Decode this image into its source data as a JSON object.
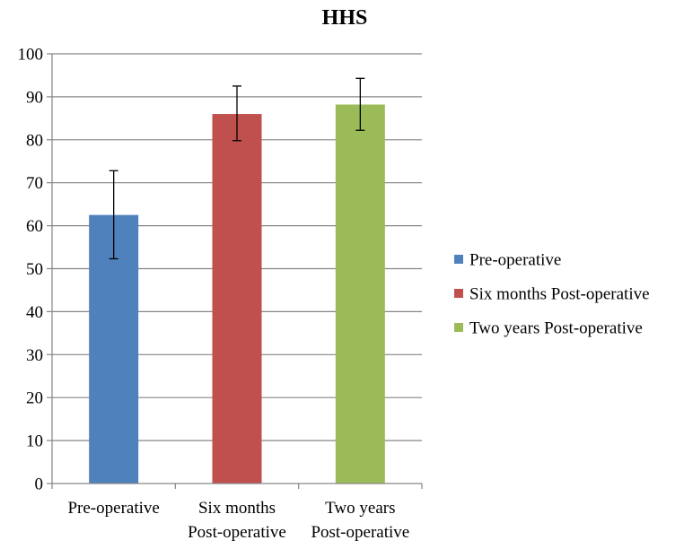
{
  "chart_data": {
    "type": "bar",
    "title": "HHS",
    "xlabel": "",
    "ylabel": "",
    "ylim": [
      0,
      100
    ],
    "yticks": [
      "0",
      "10",
      "20",
      "30",
      "40",
      "50",
      "60",
      "70",
      "80",
      "90",
      "100"
    ],
    "grid": true,
    "legend_position": "right",
    "categories": [
      [
        "Pre-operative"
      ],
      [
        "Six months",
        "Post-operative"
      ],
      [
        "Two years",
        "Post-operative"
      ]
    ],
    "values": [
      62.5,
      86,
      88.2
    ],
    "error_low": [
      52.3,
      79.8,
      82.2
    ],
    "error_high": [
      72.8,
      92.5,
      94.3
    ],
    "colors": [
      "#4f81bd",
      "#c0504d",
      "#9bbb59"
    ],
    "legend": [
      "Pre-operative",
      "Six months Post-operative",
      "Two years Post-operative"
    ]
  }
}
